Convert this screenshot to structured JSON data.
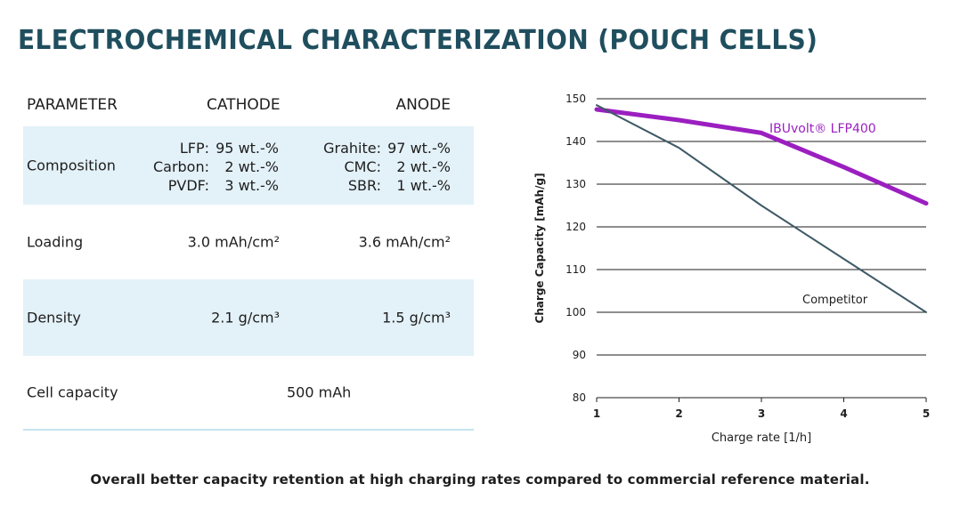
{
  "title": "ELECTROCHEMICAL CHARACTERIZATION (POUCH CELLS)",
  "table": {
    "headers": {
      "parameter": "PARAMETER",
      "cathode": "CATHODE",
      "anode": "ANODE"
    },
    "composition": {
      "label": "Composition",
      "cathode": [
        {
          "name": "LFP:",
          "value": "95 wt.-%"
        },
        {
          "name": "Carbon:",
          "value": "2 wt.-%"
        },
        {
          "name": "PVDF:",
          "value": "3 wt.-%"
        }
      ],
      "anode": [
        {
          "name": "Grahite:",
          "value": "97 wt.-%"
        },
        {
          "name": "CMC:",
          "value": "2 wt.-%"
        },
        {
          "name": "SBR:",
          "value": "1 wt.-%"
        }
      ]
    },
    "loading": {
      "label": "Loading",
      "cathode": "3.0 mAh/cm²",
      "anode": "3.6 mAh/cm²"
    },
    "density": {
      "label": "Density",
      "cathode": "2.1 g/cm³",
      "anode": "1.5 g/cm³"
    },
    "cell_capacity": {
      "label": "Cell capacity",
      "value": "500 mAh"
    }
  },
  "chart_data": {
    "type": "line",
    "xlabel": "Charge rate [1/h]",
    "ylabel": "Charge Capacity [mAh/g]",
    "xlim": [
      1,
      5
    ],
    "ylim": [
      80,
      150
    ],
    "xticks": [
      1,
      2,
      3,
      4,
      5
    ],
    "yticks": [
      80,
      90,
      100,
      110,
      120,
      130,
      140,
      150
    ],
    "grid": "horizontal",
    "series": [
      {
        "name": "IBUvolt® LFP400",
        "color": "#9b1fc0",
        "x": [
          1,
          2,
          3,
          4,
          5
        ],
        "y": [
          147.5,
          145,
          142,
          134,
          125.5
        ]
      },
      {
        "name": "Competitor",
        "color": "#3e5a66",
        "x": [
          1,
          2,
          3,
          4,
          5
        ],
        "y": [
          148.5,
          138.5,
          125,
          112.5,
          100
        ]
      }
    ]
  },
  "footer": "Overall better capacity retention at high charging rates compared to commercial reference material."
}
